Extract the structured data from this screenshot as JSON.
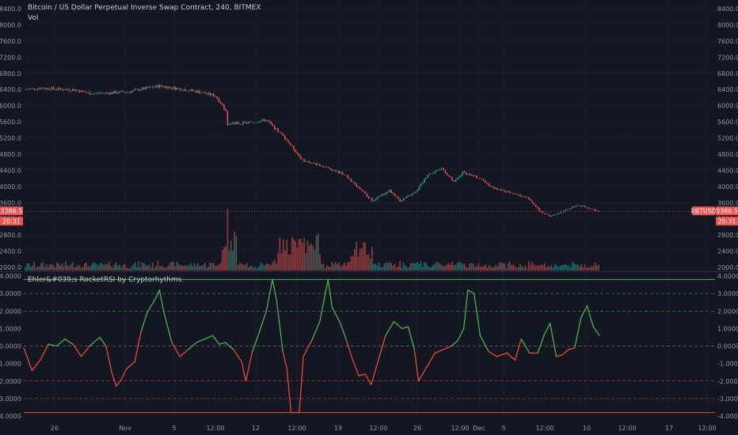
{
  "header": {
    "title": "Bitcoin / US Dollar Perpetual Inverse Swap Contract, 240, BITMEX",
    "volume_label": "Vol",
    "indicator_label": "Ehler&#039;s RocketRSI by Cryptorhythms"
  },
  "colors": {
    "background": "#131722",
    "up": "#26a69a",
    "down": "#ef5350",
    "indicator_up": "#4caf50",
    "indicator_down": "#f44336",
    "price_line": "#ef5350",
    "grid": "#1f2430",
    "axis_text": "#8f95a3"
  },
  "chart_data": [
    {
      "type": "candlestick",
      "title": "Bitcoin / US Dollar Perpetual Inverse Swap Contract, 240, BITMEX",
      "ylim": [
        1900,
        8500
      ],
      "y_ticks": [
        "8400.0",
        "8000.0",
        "7600.0",
        "7200.0",
        "6800.0",
        "6400.0",
        "6000.0",
        "5600.0",
        "5200.0",
        "4800.0",
        "4400.0",
        "4000.0",
        "3600.0",
        "3200.0",
        "2800.0",
        "2400.0",
        "2000.0"
      ],
      "x_ticks": [
        "26",
        "Nov",
        "5",
        "12:00",
        "12",
        "12:00",
        "19",
        "12:00",
        "26",
        "12:00",
        "Dec",
        "5",
        "12:00",
        "10",
        "12:00",
        "17",
        "12:00"
      ],
      "price_path": [
        [
          0,
          6400
        ],
        [
          10,
          6440
        ],
        [
          20,
          6410
        ],
        [
          30,
          6390
        ],
        [
          38,
          6300
        ],
        [
          50,
          6320
        ],
        [
          60,
          6340
        ],
        [
          66,
          6400
        ],
        [
          78,
          6490
        ],
        [
          92,
          6400
        ],
        [
          100,
          6350
        ],
        [
          110,
          6240
        ],
        [
          116,
          5900
        ],
        [
          117,
          5550
        ],
        [
          130,
          5580
        ],
        [
          139,
          5650
        ],
        [
          150,
          5200
        ],
        [
          160,
          4650
        ],
        [
          172,
          4500
        ],
        [
          184,
          4300
        ],
        [
          194,
          3900
        ],
        [
          200,
          3650
        ],
        [
          210,
          3900
        ],
        [
          216,
          3650
        ],
        [
          225,
          3860
        ],
        [
          232,
          4300
        ],
        [
          240,
          4450
        ],
        [
          247,
          4100
        ],
        [
          252,
          4350
        ],
        [
          262,
          4200
        ],
        [
          270,
          3950
        ],
        [
          280,
          3850
        ],
        [
          290,
          3700
        ],
        [
          296,
          3400
        ],
        [
          302,
          3250
        ],
        [
          310,
          3400
        ],
        [
          318,
          3550
        ],
        [
          324,
          3450
        ],
        [
          330,
          3390
        ]
      ],
      "last_price": {
        "label": "XBTUSD",
        "value": "3386.5",
        "countdown": "20:31",
        "y": 3386.5
      }
    },
    {
      "type": "bar",
      "title": "Vol",
      "note": "volume histogram overlaid at bottom of price pane"
    },
    {
      "type": "line",
      "title": "Ehler&#039;s RocketRSI by Cryptorhythms",
      "ylim": [
        -4.1,
        4.1
      ],
      "y_ticks": [
        "4.0000",
        "3.0000",
        "2.0000",
        "1.0000",
        "0.0000",
        "-1.0000",
        "-2.0000",
        "-3.0000",
        "-4.0000"
      ],
      "levels": [
        {
          "value": 3.8,
          "style": "solid",
          "color": "#4caf50"
        },
        {
          "value": 3.0,
          "style": "dashed",
          "color": "#4caf50"
        },
        {
          "value": 2.0,
          "style": "dashed",
          "color": "#4caf50"
        },
        {
          "value": 0.0,
          "style": "dashed",
          "color": "#8f95a3"
        },
        {
          "value": -2.0,
          "style": "dashed",
          "color": "#f44336"
        },
        {
          "value": -3.0,
          "style": "dashed",
          "color": "#f44336"
        },
        {
          "value": -3.8,
          "style": "solid",
          "color": "#f44336"
        }
      ],
      "points": [
        [
          0,
          -0.1
        ],
        [
          4,
          -1.4
        ],
        [
          8,
          -0.8
        ],
        [
          12,
          0.1
        ],
        [
          16,
          0.0
        ],
        [
          20,
          0.4
        ],
        [
          24,
          0.1
        ],
        [
          28,
          -0.6
        ],
        [
          32,
          0.0
        ],
        [
          37,
          0.5
        ],
        [
          40,
          0.0
        ],
        [
          43,
          -1.6
        ],
        [
          45,
          -2.3
        ],
        [
          47,
          -2.0
        ],
        [
          50,
          -1.3
        ],
        [
          54,
          -0.9
        ],
        [
          57,
          0.8
        ],
        [
          60,
          1.9
        ],
        [
          64,
          2.7
        ],
        [
          66,
          3.2
        ],
        [
          68,
          2.0
        ],
        [
          72,
          0.2
        ],
        [
          76,
          -0.6
        ],
        [
          80,
          -0.2
        ],
        [
          84,
          0.2
        ],
        [
          88,
          0.4
        ],
        [
          92,
          0.6
        ],
        [
          95,
          0.1
        ],
        [
          98,
          0.2
        ],
        [
          102,
          -0.2
        ],
        [
          106,
          -0.9
        ],
        [
          108,
          -2.0
        ],
        [
          111,
          -0.4
        ],
        [
          114,
          0.6
        ],
        [
          118,
          2.0
        ],
        [
          121,
          3.8
        ],
        [
          123,
          2.6
        ],
        [
          126,
          -0.3
        ],
        [
          128,
          -1.3
        ],
        [
          130,
          -3.8
        ],
        [
          134,
          -3.8
        ],
        [
          136,
          -0.6
        ],
        [
          140,
          0.3
        ],
        [
          144,
          1.4
        ],
        [
          148,
          3.8
        ],
        [
          150,
          2.2
        ],
        [
          154,
          1.3
        ],
        [
          157,
          0.3
        ],
        [
          160,
          -0.8
        ],
        [
          163,
          -1.7
        ],
        [
          166,
          -1.6
        ],
        [
          169,
          -2.2
        ],
        [
          172,
          -1.0
        ],
        [
          176,
          0.6
        ],
        [
          180,
          1.4
        ],
        [
          184,
          1.0
        ],
        [
          187,
          1.1
        ],
        [
          190,
          -0.2
        ],
        [
          192,
          -2.0
        ],
        [
          195,
          -1.4
        ],
        [
          200,
          -0.4
        ],
        [
          204,
          -0.2
        ],
        [
          208,
          0.0
        ],
        [
          211,
          0.3
        ],
        [
          214,
          1.0
        ],
        [
          216,
          3.2
        ],
        [
          219,
          3.0
        ],
        [
          222,
          0.6
        ],
        [
          226,
          -0.3
        ],
        [
          230,
          -0.6
        ],
        [
          235,
          -0.4
        ],
        [
          239,
          -0.8
        ],
        [
          242,
          0.4
        ],
        [
          246,
          -0.4
        ],
        [
          250,
          -0.4
        ],
        [
          253,
          0.6
        ],
        [
          256,
          1.3
        ],
        [
          259,
          -0.6
        ],
        [
          262,
          -0.5
        ],
        [
          265,
          -0.2
        ],
        [
          268,
          -0.1
        ],
        [
          271,
          1.6
        ],
        [
          274,
          2.3
        ],
        [
          277,
          1.1
        ],
        [
          280,
          0.6
        ]
      ]
    }
  ]
}
